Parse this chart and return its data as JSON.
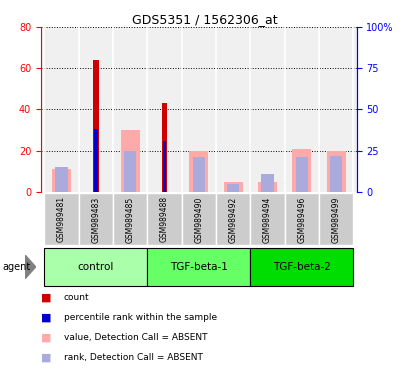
{
  "title": "GDS5351 / 1562306_at",
  "samples": [
    "GSM989481",
    "GSM989483",
    "GSM989485",
    "GSM989488",
    "GSM989490",
    "GSM989492",
    "GSM989494",
    "GSM989496",
    "GSM989499"
  ],
  "groups": [
    {
      "label": "control",
      "indices": [
        0,
        1,
        2
      ],
      "color": "#aaffaa"
    },
    {
      "label": "TGF-beta-1",
      "indices": [
        3,
        4,
        5
      ],
      "color": "#66ff66"
    },
    {
      "label": "TGF-beta-2",
      "indices": [
        6,
        7,
        8
      ],
      "color": "#00dd00"
    }
  ],
  "count_values": [
    0,
    64,
    0,
    43,
    0,
    0,
    0,
    0,
    0
  ],
  "rank_values": [
    0,
    38,
    0,
    31,
    0,
    0,
    0,
    0,
    0
  ],
  "absent_value": [
    11,
    0,
    30,
    0,
    20,
    5,
    5,
    21,
    20
  ],
  "absent_rank": [
    15,
    0,
    25,
    0,
    21,
    5,
    11,
    21,
    22
  ],
  "count_color": "#cc0000",
  "rank_color": "#0000cc",
  "absent_value_color": "#ffaaaa",
  "absent_rank_color": "#aaaadd",
  "ylim_left": [
    0,
    80
  ],
  "ylim_right": [
    0,
    100
  ],
  "yticks_left": [
    0,
    20,
    40,
    60,
    80
  ],
  "yticks_right": [
    0,
    25,
    50,
    75,
    100
  ],
  "background_color": "#ffffff",
  "sample_box_color": "#cccccc",
  "bar_width": 0.55
}
